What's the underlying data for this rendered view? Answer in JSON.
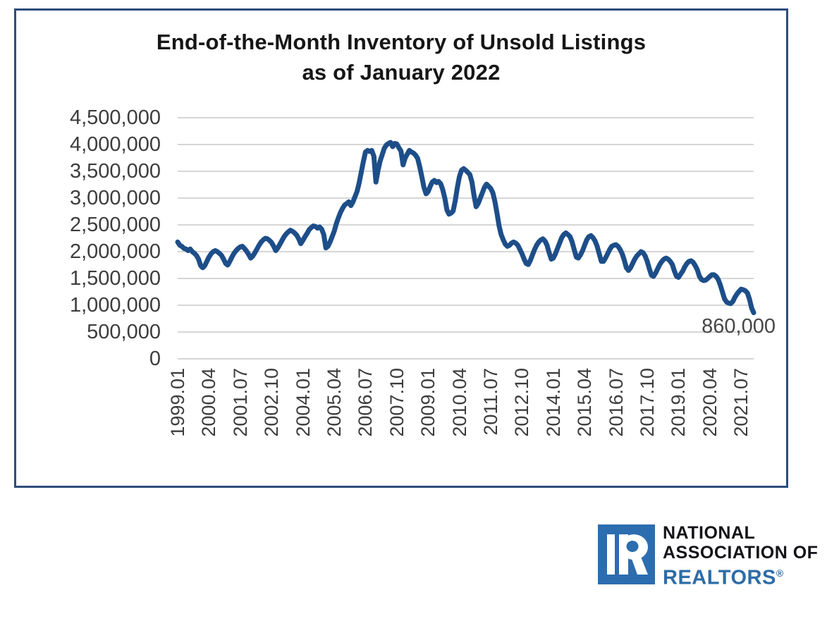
{
  "chart": {
    "title_line1": "End-of-the-Month Inventory of Unsold Listings",
    "title_line2": "as of January 2022",
    "annotation": "860,000",
    "frame_border_color": "#2e4d7b",
    "line_color": "#1d4e89",
    "grid_color": "#d6d6d6",
    "label_color": "#3d3d3d"
  },
  "chart_data": {
    "type": "line",
    "title": "End-of-the-Month Inventory of Unsold Listings as of January 2022",
    "xlabel": "",
    "ylabel": "",
    "unit": "listings",
    "value_scale": 1000000,
    "frequency": "monthly",
    "x_start": "1999.01",
    "x_end": "2022.01",
    "ylim": [
      0,
      4500000
    ],
    "grid": "horizontal",
    "legend": false,
    "y_tick_labels": [
      "0",
      "500,000",
      "1,000,000",
      "1,500,000",
      "2,000,000",
      "2,500,000",
      "3,000,000",
      "3,500,000",
      "4,000,000",
      "4,500,000"
    ],
    "x_tick_labels": [
      "1999.01",
      "2000.04",
      "2001.07",
      "2002.10",
      "2004.01",
      "2005.04",
      "2006.07",
      "2007.10",
      "2009.01",
      "2010.04",
      "2011.07",
      "2012.10",
      "2014.01",
      "2015.04",
      "2016.07",
      "2017.10",
      "2019.01",
      "2020.04",
      "2021.07"
    ],
    "x_tick_interval_months": 15,
    "final_value": 860000,
    "values_millions": [
      2.18,
      2.12,
      2.1,
      2.06,
      2.05,
      2.02,
      2.05,
      2.0,
      1.97,
      1.93,
      1.86,
      1.74,
      1.7,
      1.74,
      1.82,
      1.9,
      1.96,
      2.0,
      2.02,
      2.0,
      1.97,
      1.93,
      1.86,
      1.78,
      1.75,
      1.82,
      1.9,
      1.97,
      2.02,
      2.06,
      2.09,
      2.1,
      2.06,
      2.01,
      1.95,
      1.88,
      1.92,
      1.98,
      2.05,
      2.12,
      2.18,
      2.22,
      2.25,
      2.24,
      2.21,
      2.17,
      2.1,
      2.02,
      2.07,
      2.14,
      2.21,
      2.28,
      2.33,
      2.37,
      2.4,
      2.38,
      2.35,
      2.31,
      2.24,
      2.15,
      2.21,
      2.28,
      2.34,
      2.41,
      2.45,
      2.48,
      2.47,
      2.44,
      2.46,
      2.42,
      2.32,
      2.07,
      2.1,
      2.18,
      2.28,
      2.38,
      2.52,
      2.63,
      2.73,
      2.81,
      2.87,
      2.9,
      2.93,
      2.86,
      2.93,
      3.03,
      3.13,
      3.29,
      3.49,
      3.69,
      3.86,
      3.89,
      3.87,
      3.89,
      3.78,
      3.3,
      3.52,
      3.69,
      3.81,
      3.93,
      3.99,
      4.02,
      4.04,
      3.96,
      4.02,
      4.01,
      3.94,
      3.88,
      3.62,
      3.75,
      3.82,
      3.89,
      3.86,
      3.84,
      3.8,
      3.74,
      3.58,
      3.4,
      3.2,
      3.08,
      3.12,
      3.22,
      3.3,
      3.33,
      3.29,
      3.31,
      3.27,
      3.16,
      3.0,
      2.78,
      2.7,
      2.72,
      2.76,
      2.95,
      3.2,
      3.4,
      3.52,
      3.55,
      3.52,
      3.48,
      3.44,
      3.3,
      3.05,
      2.84,
      2.9,
      3.0,
      3.1,
      3.2,
      3.26,
      3.22,
      3.18,
      3.1,
      2.94,
      2.72,
      2.48,
      2.32,
      2.22,
      2.14,
      2.1,
      2.12,
      2.16,
      2.18,
      2.16,
      2.12,
      2.04,
      1.96,
      1.86,
      1.78,
      1.76,
      1.84,
      1.94,
      2.04,
      2.12,
      2.18,
      2.22,
      2.24,
      2.2,
      2.12,
      1.98,
      1.86,
      1.88,
      1.96,
      2.06,
      2.16,
      2.26,
      2.32,
      2.35,
      2.32,
      2.28,
      2.18,
      2.04,
      1.9,
      1.88,
      1.94,
      2.02,
      2.12,
      2.22,
      2.28,
      2.3,
      2.26,
      2.2,
      2.1,
      1.96,
      1.82,
      1.82,
      1.88,
      1.96,
      2.04,
      2.1,
      2.12,
      2.13,
      2.1,
      2.04,
      1.96,
      1.84,
      1.7,
      1.65,
      1.7,
      1.78,
      1.86,
      1.92,
      1.96,
      2.0,
      1.98,
      1.92,
      1.82,
      1.68,
      1.56,
      1.54,
      1.6,
      1.68,
      1.76,
      1.82,
      1.86,
      1.88,
      1.86,
      1.82,
      1.76,
      1.64,
      1.54,
      1.52,
      1.58,
      1.64,
      1.72,
      1.78,
      1.82,
      1.83,
      1.8,
      1.74,
      1.66,
      1.54,
      1.48,
      1.46,
      1.47,
      1.5,
      1.54,
      1.57,
      1.57,
      1.54,
      1.48,
      1.38,
      1.25,
      1.12,
      1.06,
      1.04,
      1.03,
      1.07,
      1.15,
      1.21,
      1.26,
      1.3,
      1.29,
      1.27,
      1.23,
      1.11,
      0.95,
      0.86
    ]
  },
  "logo": {
    "line1": "NATIONAL",
    "line2": "ASSOCIATION OF",
    "line3": "REALTORS",
    "registered_mark": "®",
    "brand_blue": "#2c6db0"
  }
}
